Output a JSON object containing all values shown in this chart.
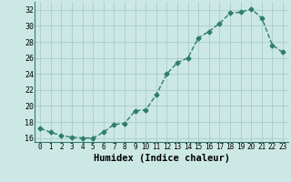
{
  "x": [
    0,
    1,
    2,
    3,
    4,
    5,
    6,
    7,
    8,
    9,
    10,
    11,
    12,
    13,
    14,
    15,
    16,
    17,
    18,
    19,
    20,
    21,
    22,
    23
  ],
  "y": [
    17.2,
    16.7,
    16.3,
    16.1,
    16.0,
    16.0,
    16.7,
    17.7,
    17.8,
    19.4,
    19.5,
    21.4,
    24.0,
    25.4,
    26.0,
    28.5,
    29.3,
    30.3,
    31.6,
    31.7,
    32.1,
    31.0,
    27.6,
    26.7
  ],
  "line_color": "#2e7d6e",
  "marker": "D",
  "marker_size": 2.5,
  "line_width": 1.0,
  "xlabel": "Humidex (Indice chaleur)",
  "xlabel_fontsize": 7.5,
  "bg_color": "#cce8e4",
  "grid_color": "#aaccc8",
  "label_color": "#000000",
  "xlim": [
    -0.5,
    23.5
  ],
  "ylim": [
    15.5,
    33
  ],
  "yticks": [
    16,
    18,
    20,
    22,
    24,
    26,
    28,
    30,
    32
  ],
  "xticks": [
    0,
    1,
    2,
    3,
    4,
    5,
    6,
    7,
    8,
    9,
    10,
    11,
    12,
    13,
    14,
    15,
    16,
    17,
    18,
    19,
    20,
    21,
    22,
    23
  ],
  "tick_fontsize": 6.0,
  "xtick_fontsize": 5.5
}
